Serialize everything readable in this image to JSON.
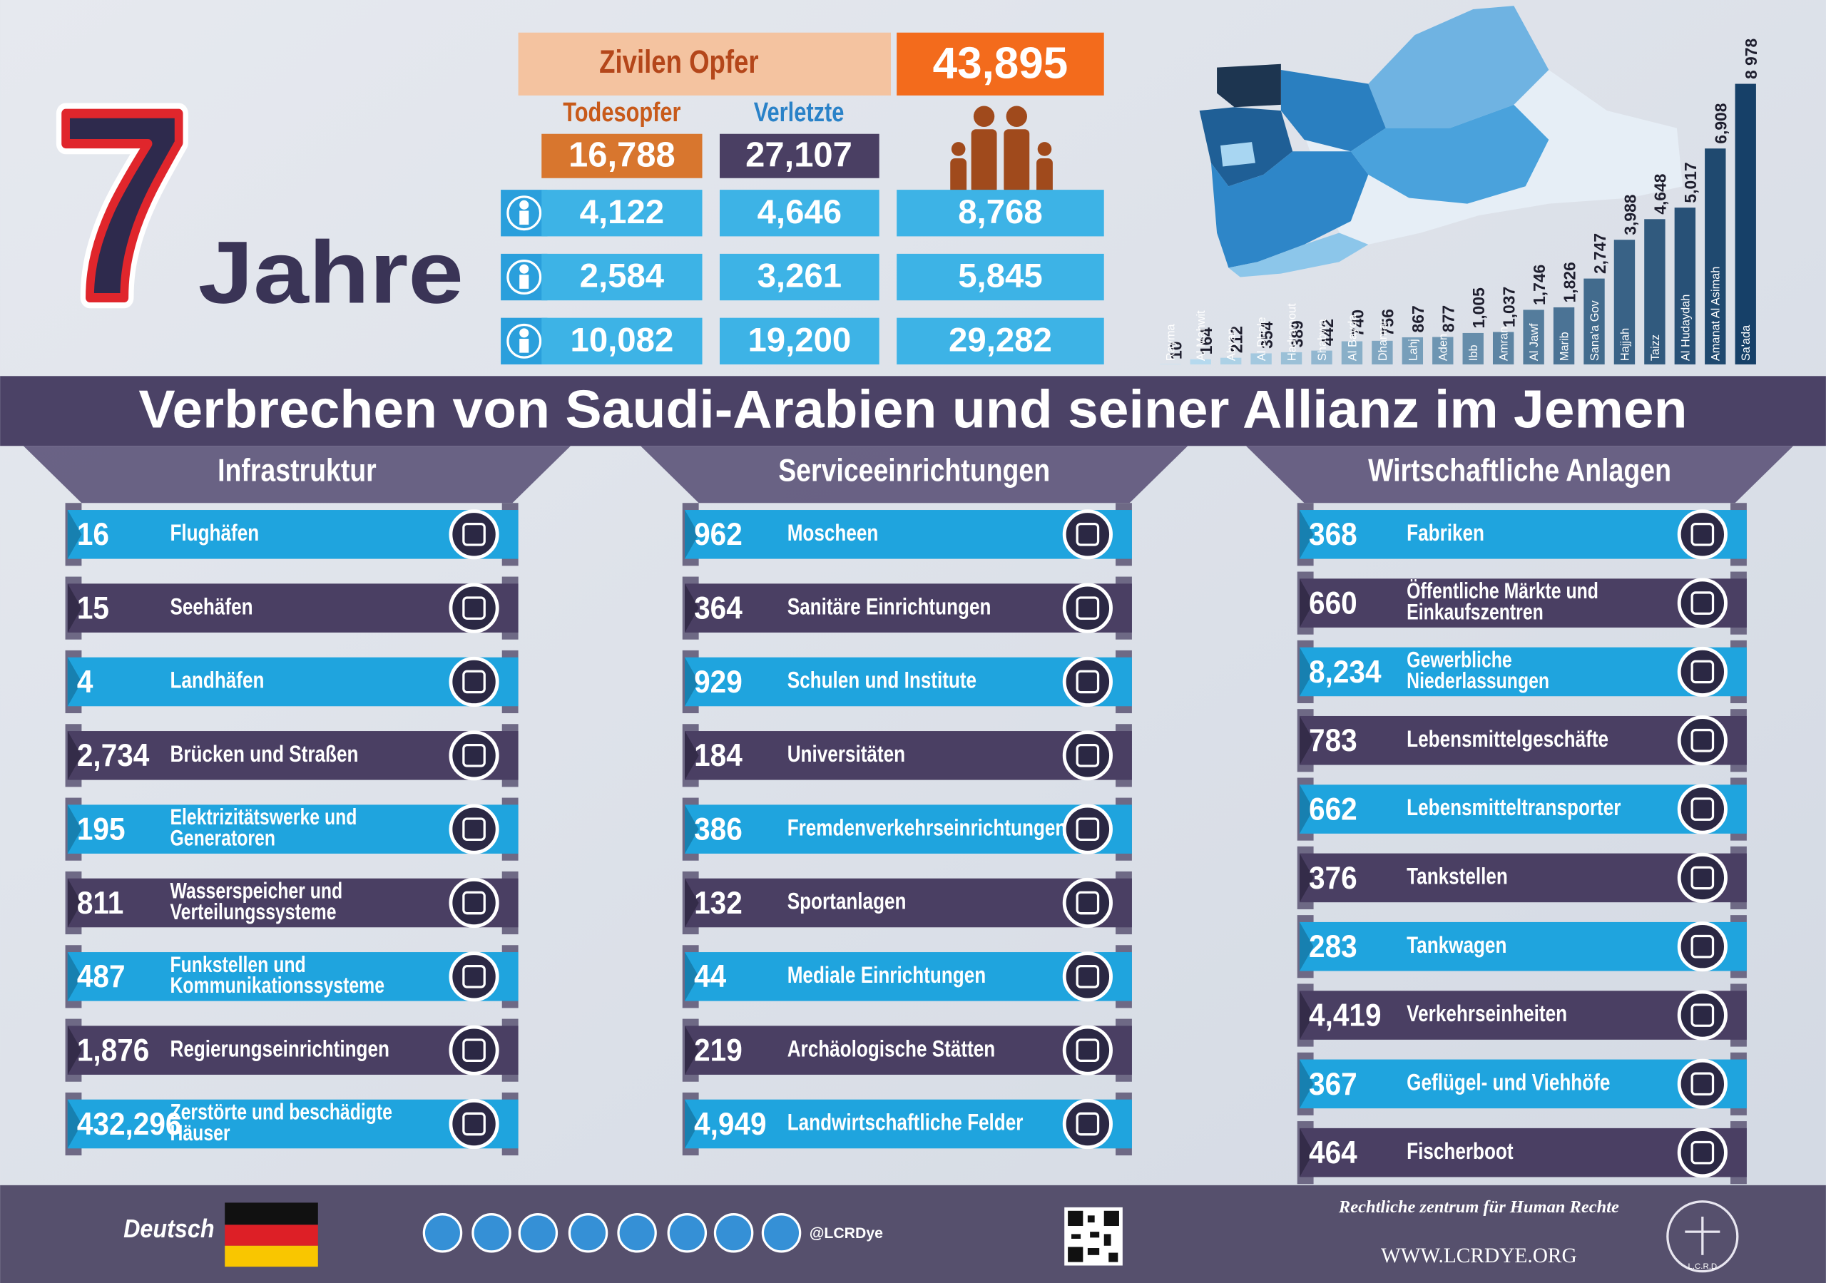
{
  "headline": {
    "number": "7",
    "word": "Jahre"
  },
  "casualties": {
    "label": "Zivilen Opfer",
    "total": "43,895",
    "headers": [
      "Todesopfer",
      "Verletzte"
    ],
    "totals": [
      "16,788",
      "27,107"
    ],
    "rows": [
      [
        "4,122",
        "4,646",
        "8,768"
      ],
      [
        "2,584",
        "3,261",
        "5,845"
      ],
      [
        "10,082",
        "19,200",
        "29,282"
      ]
    ]
  },
  "chart_data": {
    "type": "bar",
    "categories": [
      "Rayma",
      "Al Mahwit",
      "Abyan",
      "Al Dhale",
      "Hadramout",
      "Shabwa",
      "Al Bayda",
      "Dhamar",
      "Lahj",
      "Aden",
      "Ibb",
      "Amran",
      "Al Jawf",
      "Marib",
      "Sana'a Gov",
      "Hajjah",
      "Taizz",
      "Al Hudaydah",
      "Amanat Al Asimah",
      "Sa'ada"
    ],
    "values": [
      10,
      164,
      212,
      354,
      389,
      442,
      740,
      756,
      867,
      877,
      1005,
      1037,
      1746,
      1826,
      2747,
      3988,
      4648,
      5017,
      6908,
      8978
    ],
    "value_labels": [
      "10",
      "164",
      "212",
      "354",
      "389",
      "442",
      "740",
      "756",
      "867",
      "877",
      "1,005",
      "1,037",
      "1,746",
      "1,826",
      "2,747",
      "3,988",
      "4,648",
      "5,017",
      "6,908",
      "8 978"
    ]
  },
  "banner": "Verbrechen von Saudi-Arabien und seiner Allianz im Jemen",
  "sections": [
    {
      "title": "Infrastruktur",
      "items": [
        {
          "count": "16",
          "label": [
            "Flughäfen"
          ]
        },
        {
          "count": "15",
          "label": [
            "Seehäfen"
          ]
        },
        {
          "count": "4",
          "label": [
            "Landhäfen"
          ]
        },
        {
          "count": "2,734",
          "label": [
            "Brücken und Straßen"
          ]
        },
        {
          "count": "195",
          "label": [
            "Elektrizitätswerke und",
            "Generatoren"
          ]
        },
        {
          "count": "811",
          "label": [
            "Wasserspeicher und",
            "Verteilungssysteme"
          ]
        },
        {
          "count": "487",
          "label": [
            "Funkstellen und",
            "Kommunikationssysteme"
          ]
        },
        {
          "count": "1,876",
          "label": [
            "Regierungseinrichtingen"
          ]
        },
        {
          "count": "432,296",
          "label": [
            "Zerstörte und beschädigte",
            "Häuser"
          ]
        }
      ]
    },
    {
      "title": "Serviceeinrichtungen",
      "items": [
        {
          "count": "962",
          "label": [
            "Moscheen"
          ]
        },
        {
          "count": "364",
          "label": [
            "Sanitäre Einrichtungen"
          ]
        },
        {
          "count": "929",
          "label": [
            "Schulen und Institute"
          ]
        },
        {
          "count": "184",
          "label": [
            "Universitäten"
          ]
        },
        {
          "count": "386",
          "label": [
            "Fremdenverkehrseinrichtungen"
          ]
        },
        {
          "count": "132",
          "label": [
            "Sportanlagen"
          ]
        },
        {
          "count": "44",
          "label": [
            "Mediale Einrichtungen"
          ]
        },
        {
          "count": "219",
          "label": [
            "Archäologische Stätten"
          ]
        },
        {
          "count": "4,949",
          "label": [
            "Landwirtschaftliche Felder"
          ]
        }
      ]
    },
    {
      "title": "Wirtschaftliche Anlagen",
      "items": [
        {
          "count": "368",
          "label": [
            "Fabriken"
          ]
        },
        {
          "count": "660",
          "label": [
            "Öffentliche Märkte und",
            "Einkaufszentren"
          ]
        },
        {
          "count": "8,234",
          "label": [
            "Gewerbliche",
            "Niederlassungen"
          ]
        },
        {
          "count": "783",
          "label": [
            "Lebensmittelgeschäfte"
          ]
        },
        {
          "count": "662",
          "label": [
            "Lebensmitteltransporter"
          ]
        },
        {
          "count": "376",
          "label": [
            "Tankstellen"
          ]
        },
        {
          "count": "283",
          "label": [
            "Tankwagen"
          ]
        },
        {
          "count": "4,419",
          "label": [
            "Verkehrseinheiten"
          ]
        },
        {
          "count": "367",
          "label": [
            "Geflügel- und Viehhöfe"
          ]
        },
        {
          "count": "464",
          "label": [
            "Fischerboot"
          ]
        }
      ]
    }
  ],
  "footer": {
    "language": "Deutsch",
    "handle": "@LCRDye",
    "organization": "Rechtliche zentrum für Human Rechte",
    "website": "WWW.LCRDYE.ORG",
    "logo": "L.C.R.D"
  }
}
